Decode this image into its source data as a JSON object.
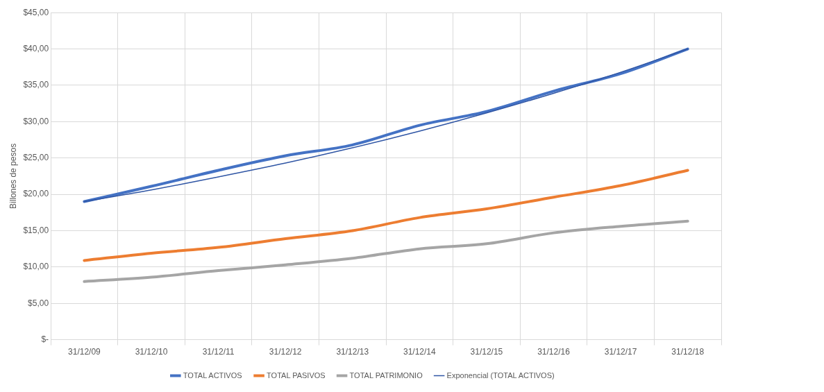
{
  "chart_data": {
    "type": "line",
    "ylabel": "Billones de pesos",
    "categories": [
      "31/12/09",
      "31/12/10",
      "31/12/11",
      "31/12/12",
      "31/12/13",
      "31/12/14",
      "31/12/15",
      "31/12/16",
      "31/12/17",
      "31/12/18"
    ],
    "series": [
      {
        "name": "TOTAL ACTIVOS",
        "color": "#4472c4",
        "values": [
          19.0,
          21.1,
          23.3,
          25.3,
          26.8,
          29.5,
          31.4,
          34.2,
          36.6,
          40.0
        ]
      },
      {
        "name": "TOTAL PASIVOS",
        "color": "#ed7d31",
        "values": [
          10.9,
          11.9,
          12.7,
          13.9,
          15.0,
          16.8,
          18.0,
          19.6,
          21.2,
          23.3
        ]
      },
      {
        "name": "TOTAL PATRIMONIO",
        "color": "#a5a5a5",
        "values": [
          8.0,
          8.6,
          9.5,
          10.3,
          11.2,
          12.5,
          13.2,
          14.7,
          15.6,
          16.3
        ]
      },
      {
        "name": "Exponencial (TOTAL ACTIVOS)",
        "color": "#2f55a4",
        "values": [
          19.0,
          20.6,
          22.4,
          24.3,
          26.4,
          28.7,
          31.2,
          33.9,
          36.8,
          40.0
        ]
      }
    ],
    "ylim": [
      0,
      45
    ],
    "yticks": [
      {
        "value": 0,
        "label": "$-"
      },
      {
        "value": 5,
        "label": "$5,00"
      },
      {
        "value": 10,
        "label": "$10,00"
      },
      {
        "value": 15,
        "label": "$15,00"
      },
      {
        "value": 20,
        "label": "$20,00"
      },
      {
        "value": 25,
        "label": "$25,00"
      },
      {
        "value": 30,
        "label": "$30,00"
      },
      {
        "value": 35,
        "label": "$35,00"
      },
      {
        "value": 40,
        "label": "$40,00"
      },
      {
        "value": 45,
        "label": "$45,00"
      }
    ],
    "grid": true,
    "legend": "bottom",
    "marker": "none",
    "line_style": "solid"
  }
}
